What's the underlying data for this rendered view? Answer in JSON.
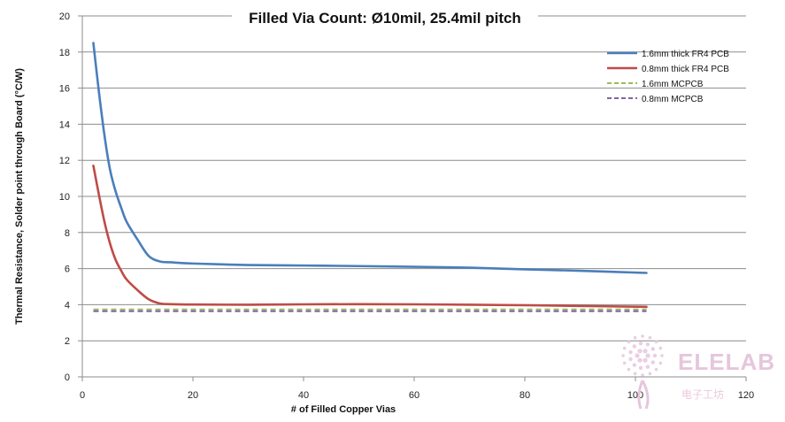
{
  "chart_data": {
    "type": "line",
    "title": "Filled Via Count: Ø10mil, 25.4mil pitch",
    "xlabel": "# of Filled Copper Vias",
    "ylabel": "Thermal Resistance, Solder point through Board (°C/W)",
    "xlim": [
      0,
      120
    ],
    "ylim": [
      0,
      20
    ],
    "xticks": [
      0,
      20,
      40,
      60,
      80,
      100,
      120
    ],
    "yticks": [
      0,
      2,
      4,
      6,
      8,
      10,
      12,
      14,
      16,
      18,
      20
    ],
    "grid": "horizontal",
    "legend_position": "top-right",
    "series": [
      {
        "name": "1.6mm thick FR4 PCB",
        "color": "#4a7ebb",
        "style": "solid",
        "x": [
          2,
          3,
          4,
          5,
          6,
          7,
          8,
          10,
          12,
          14,
          16,
          20,
          30,
          40,
          50,
          60,
          70,
          80,
          90,
          102
        ],
        "y": [
          18.5,
          15.8,
          13.4,
          11.5,
          10.3,
          9.4,
          8.6,
          7.6,
          6.7,
          6.4,
          6.35,
          6.28,
          6.2,
          6.17,
          6.14,
          6.1,
          6.05,
          5.96,
          5.88,
          5.76
        ]
      },
      {
        "name": "0.8mm thick FR4 PCB",
        "color": "#be4b48",
        "style": "solid",
        "x": [
          2,
          3,
          4,
          5,
          6,
          7,
          8,
          10,
          12,
          14,
          16,
          20,
          30,
          40,
          50,
          60,
          70,
          80,
          90,
          102
        ],
        "y": [
          11.7,
          10.1,
          8.6,
          7.4,
          6.5,
          5.9,
          5.4,
          4.8,
          4.3,
          4.07,
          4.03,
          4.01,
          4.0,
          4.02,
          4.03,
          4.02,
          4.0,
          3.97,
          3.93,
          3.88
        ]
      },
      {
        "name": "1.6mm MCPCB",
        "color": "#9bbb59",
        "style": "dashed",
        "x": [
          2,
          102
        ],
        "y": [
          3.74,
          3.74
        ]
      },
      {
        "name": "0.8mm MCPCB",
        "color": "#8064a2",
        "style": "dashed",
        "x": [
          2,
          102
        ],
        "y": [
          3.64,
          3.64
        ]
      }
    ]
  },
  "watermark": {
    "text": "ELELAB",
    "subtext": "电子工坊",
    "color": "#e6c6dc"
  }
}
